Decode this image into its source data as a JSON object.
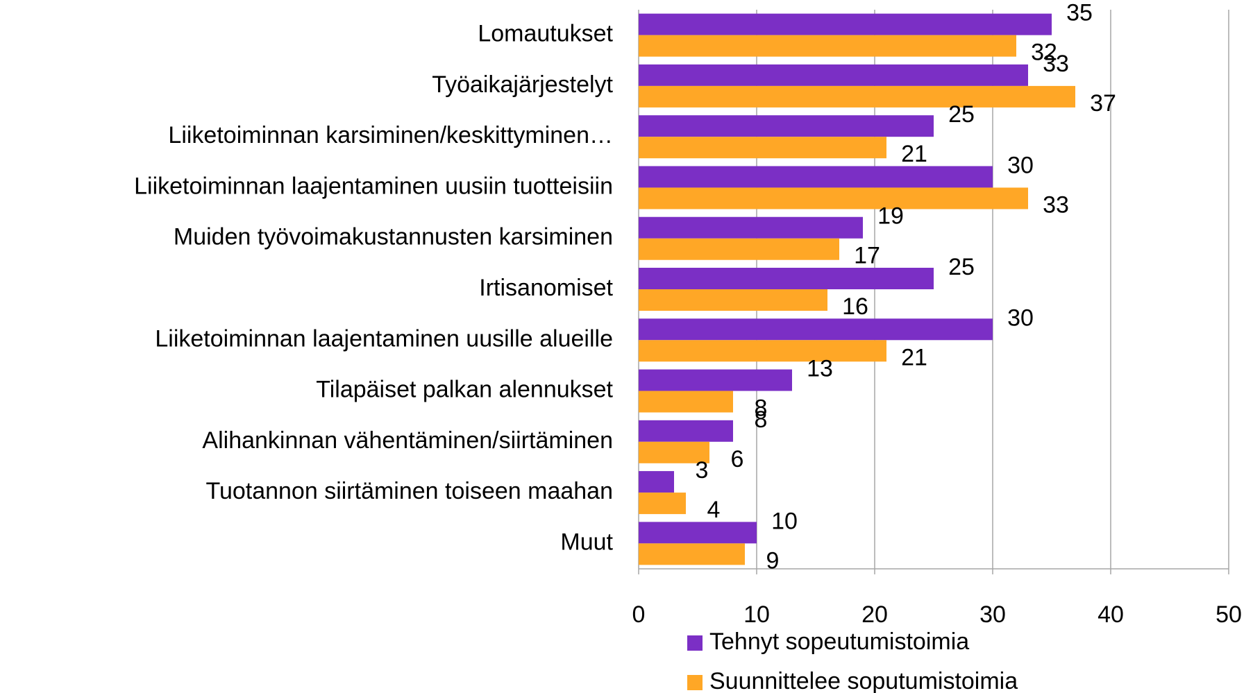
{
  "chart_data": {
    "type": "hbar",
    "categories": [
      "Lomautukset",
      "Työaikajärjestelyt",
      "Liiketoiminnan karsiminen/keskittyminen…",
      "Liiketoiminnan laajentaminen uusiin tuotteisiin",
      "Muiden työvoimakustannusten karsiminen",
      "Irtisanomiset",
      "Liiketoiminnan laajentaminen uusille alueille",
      "Tilapäiset palkan alennukset",
      "Alihankinnan vähentäminen/siirtäminen",
      "Tuotannon siirtäminen toiseen maahan",
      "Muut"
    ],
    "series": [
      {
        "name": "Tehnyt sopeutumistoimia",
        "color": "#7b2fc5",
        "values": [
          35,
          33,
          25,
          30,
          19,
          25,
          30,
          13,
          8,
          3,
          10
        ]
      },
      {
        "name": "Suunnittelee soputumistoimia",
        "color": "#ffa726",
        "values": [
          32,
          37,
          21,
          33,
          17,
          16,
          21,
          8,
          6,
          4,
          9
        ]
      }
    ],
    "xlim": [
      0,
      50
    ],
    "xticks": [
      0,
      10,
      20,
      30,
      40,
      50
    ],
    "grid": true
  }
}
